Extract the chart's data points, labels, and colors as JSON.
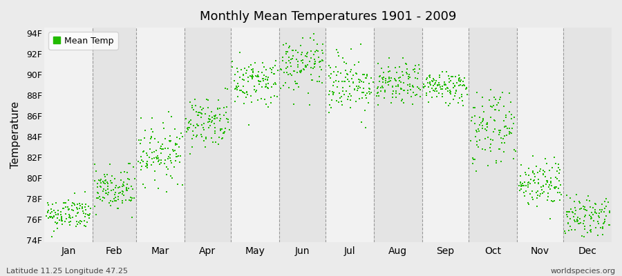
{
  "title": "Monthly Mean Temperatures 1901 - 2009",
  "ylabel": "Temperature",
  "yticks": [
    74,
    76,
    78,
    80,
    82,
    84,
    86,
    88,
    90,
    92,
    94
  ],
  "ytick_labels": [
    "74F",
    "76F",
    "78F",
    "80F",
    "82F",
    "84F",
    "86F",
    "88F",
    "90F",
    "92F",
    "94F"
  ],
  "ylim": [
    73.8,
    94.5
  ],
  "month_labels": [
    "Jan",
    "Feb",
    "Mar",
    "Apr",
    "May",
    "Jun",
    "Jul",
    "Aug",
    "Sep",
    "Oct",
    "Nov",
    "Dec"
  ],
  "dot_color": "#22bb00",
  "background_color": "#ebebeb",
  "band_color_light": "#f2f2f2",
  "band_color_dark": "#e4e4e4",
  "legend_label": "Mean Temp",
  "footer_left": "Latitude 11.25 Longitude 47.25",
  "footer_right": "worldspecies.org",
  "monthly_means": [
    76.5,
    78.8,
    82.5,
    85.5,
    89.3,
    90.8,
    89.2,
    89.0,
    88.8,
    85.0,
    79.5,
    76.3
  ],
  "monthly_spreads": [
    0.8,
    1.2,
    1.4,
    1.2,
    1.2,
    1.3,
    1.5,
    1.0,
    0.8,
    2.0,
    1.2,
    1.0
  ],
  "n_points": 109,
  "dot_size": 3
}
